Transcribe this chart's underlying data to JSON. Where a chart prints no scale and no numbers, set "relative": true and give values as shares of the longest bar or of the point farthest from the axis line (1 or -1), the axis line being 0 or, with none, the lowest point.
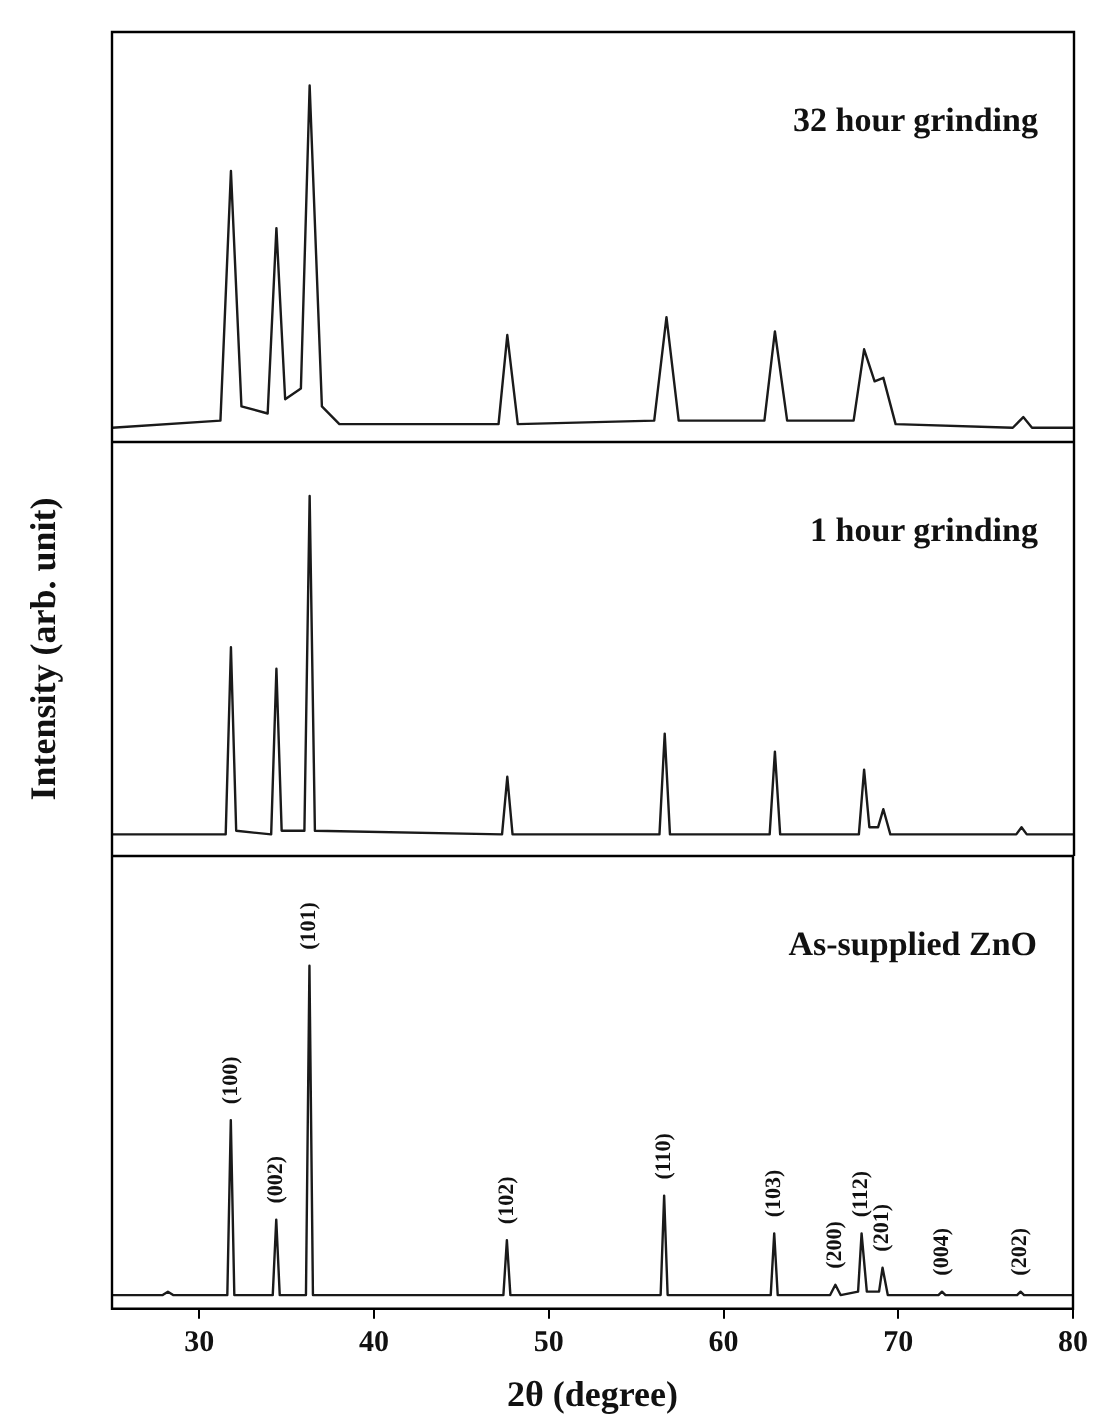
{
  "chart_data": [
    {
      "type": "line",
      "relative": true,
      "color": "#1a1a1a",
      "annotations": [
        "32 hour grinding"
      ],
      "xlim": [
        25,
        80
      ],
      "xticks": [
        30,
        40,
        50,
        60,
        70,
        80
      ],
      "tick_labels": false,
      "x": [
        25,
        31.2,
        31.8,
        32.4,
        33.9,
        34.4,
        34.9,
        35.8,
        36.3,
        37.0,
        38,
        47.1,
        47.6,
        48.2,
        56.0,
        56.7,
        57.4,
        62.3,
        62.9,
        63.6,
        67.4,
        68.0,
        68.6,
        69.1,
        69.8,
        76.5,
        77.1,
        77.6,
        80
      ],
      "values": [
        0.04,
        0.06,
        0.76,
        0.1,
        0.08,
        0.6,
        0.12,
        0.15,
        1,
        0.1,
        0.05,
        0.05,
        0.3,
        0.05,
        0.06,
        0.35,
        0.06,
        0.06,
        0.31,
        0.06,
        0.06,
        0.26,
        0.17,
        0.18,
        0.05,
        0.04,
        0.07,
        0.04,
        0.04
      ]
    },
    {
      "type": "line",
      "relative": true,
      "color": "#1a1a1a",
      "ylabel": "Intensity (arb. unit)",
      "annotations": [
        "1 hour grinding"
      ],
      "xlim": [
        25,
        80
      ],
      "xticks": [
        30,
        40,
        50,
        60,
        70,
        80
      ],
      "tick_labels": false,
      "x": [
        25,
        31.5,
        31.8,
        32.1,
        34.1,
        34.4,
        34.7,
        36.0,
        36.3,
        36.6,
        47.3,
        47.6,
        47.9,
        56.3,
        56.6,
        56.9,
        62.6,
        62.9,
        63.2,
        67.7,
        68.0,
        68.3,
        68.8,
        69.1,
        69.5,
        76.7,
        77.0,
        77.3,
        80
      ],
      "values": [
        0.06,
        0.06,
        0.58,
        0.07,
        0.06,
        0.52,
        0.07,
        0.07,
        1,
        0.07,
        0.06,
        0.22,
        0.06,
        0.06,
        0.34,
        0.06,
        0.06,
        0.29,
        0.06,
        0.06,
        0.24,
        0.08,
        0.08,
        0.13,
        0.06,
        0.06,
        0.08,
        0.06,
        0.06
      ]
    },
    {
      "type": "line",
      "relative": true,
      "color": "#1a1a1a",
      "xlabel": "2θ (degree)",
      "xlim": [
        25,
        80
      ],
      "xticks": [
        30,
        40,
        50,
        60,
        70,
        80
      ],
      "tick_labels": "x",
      "annotations": [
        "As-supplied ZnO",
        {
          "text": "(100)",
          "x": 31.8,
          "y": 0.55
        },
        {
          "text": "(002)",
          "x": 34.4,
          "y": 0.26
        },
        {
          "text": "(101)",
          "x": 36.3,
          "y": 1
        },
        {
          "text": "(102)",
          "x": 47.6,
          "y": 0.2
        },
        {
          "text": "(110)",
          "x": 56.6,
          "y": 0.33
        },
        {
          "text": "(103)",
          "x": 62.9,
          "y": 0.22
        },
        {
          "text": "(200)",
          "x": 66.4,
          "y": 0.07
        },
        {
          "text": "(112)",
          "x": 67.9,
          "y": 0.22
        },
        {
          "text": "(201)",
          "x": 69.1,
          "y": 0.12
        },
        {
          "text": "(004)",
          "x": 72.5,
          "y": 0.05
        },
        {
          "text": "(202)",
          "x": 77,
          "y": 0.05
        }
      ],
      "x": [
        25,
        27.9,
        28.2,
        28.5,
        31.6,
        31.8,
        32.0,
        34.2,
        34.4,
        34.6,
        36.1,
        36.3,
        36.5,
        47.4,
        47.6,
        47.8,
        56.4,
        56.6,
        56.8,
        62.7,
        62.9,
        63.1,
        66.1,
        66.4,
        66.7,
        67.7,
        67.9,
        68.2,
        68.9,
        69.1,
        69.4,
        72.3,
        72.5,
        72.7,
        76.8,
        77.0,
        77.2,
        80
      ],
      "values": [
        0.04,
        0.04,
        0.05,
        0.04,
        0.04,
        0.55,
        0.04,
        0.04,
        0.26,
        0.04,
        0.04,
        1,
        0.04,
        0.04,
        0.2,
        0.04,
        0.04,
        0.33,
        0.04,
        0.04,
        0.22,
        0.04,
        0.04,
        0.07,
        0.04,
        0.05,
        0.22,
        0.05,
        0.05,
        0.12,
        0.04,
        0.04,
        0.05,
        0.04,
        0.04,
        0.05,
        0.04,
        0.04
      ]
    }
  ]
}
